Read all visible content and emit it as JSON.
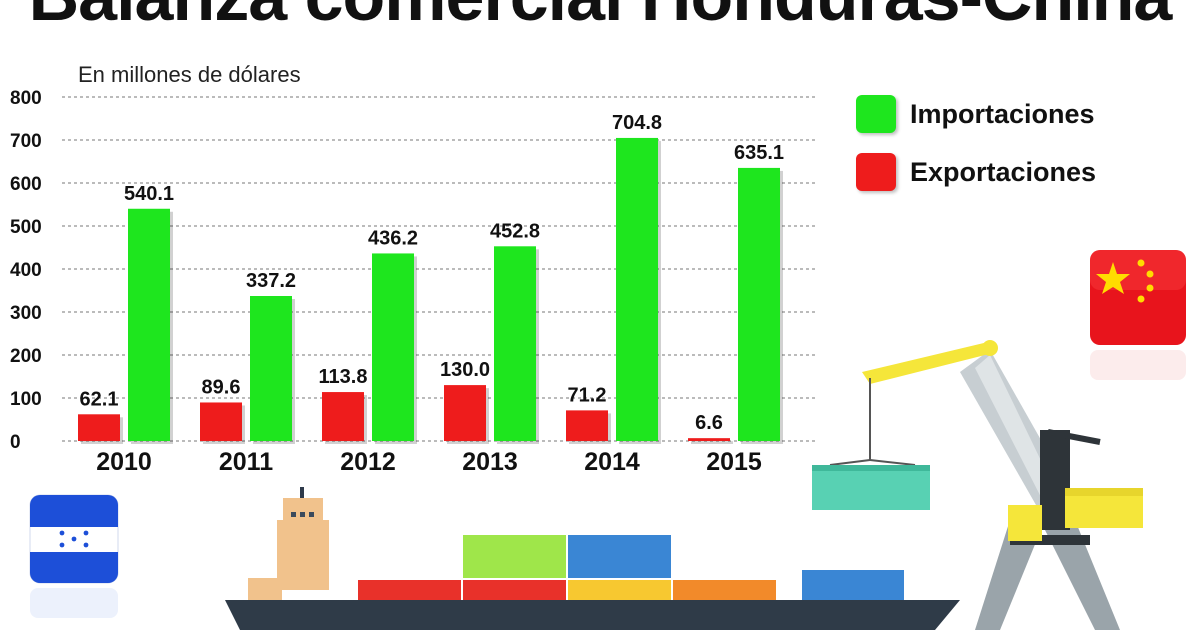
{
  "title": "Balanza comercial Honduras-China",
  "subtitle": "En millones de dólares",
  "colors": {
    "imports": "#1ee61e",
    "exports": "#ee1c1c"
  },
  "legend": [
    {
      "label": "Importaciones",
      "color": "#1ee61e"
    },
    {
      "label": "Exportaciones",
      "color": "#ee1c1c"
    }
  ],
  "chart_data": {
    "type": "bar",
    "title": "Balanza comercial Honduras-China",
    "ylabel": "En millones de dólares",
    "xlabel": "",
    "categories": [
      "2010",
      "2011",
      "2012",
      "2013",
      "2014",
      "2015"
    ],
    "series": [
      {
        "name": "Exportaciones",
        "values": [
          62.1,
          89.6,
          113.8,
          130.0,
          71.2,
          6.6
        ],
        "labels": [
          "62.1",
          "89.6",
          "113.8",
          "130.0",
          "71.2",
          "6.6"
        ]
      },
      {
        "name": "Importaciones",
        "values": [
          540.1,
          337.2,
          436.2,
          452.8,
          704.8,
          635.1
        ],
        "labels": [
          "540.1",
          "337.2",
          "436.2",
          "452.8",
          "704.8",
          "635.1"
        ]
      }
    ],
    "yticks": [
      0,
      100,
      200,
      300,
      400,
      500,
      600,
      700,
      800
    ],
    "ylim": [
      0,
      800
    ],
    "grid": true,
    "legend_position": "top-right"
  }
}
